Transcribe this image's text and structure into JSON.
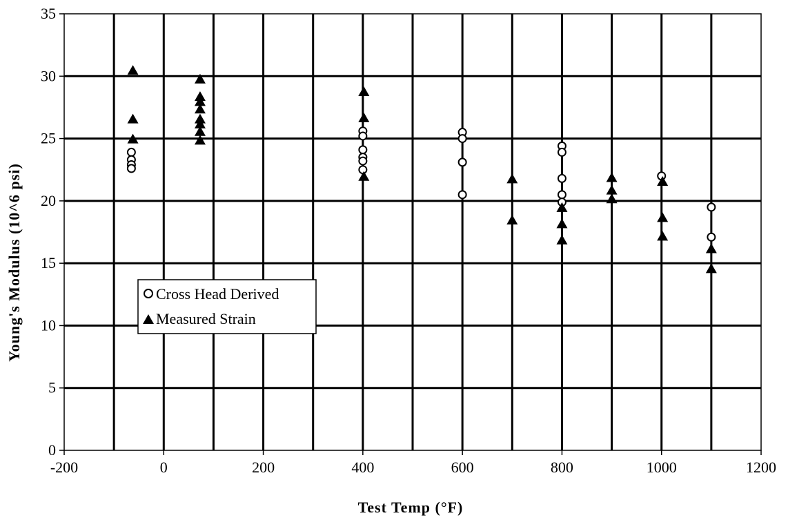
{
  "chart_data": {
    "type": "scatter",
    "xlabel": "Test Temp (°F)",
    "ylabel": "Young's Modulus (10^6 psi)",
    "xlim": [
      -200,
      1200
    ],
    "ylim": [
      0,
      35
    ],
    "x_ticks": [
      -200,
      0,
      200,
      400,
      600,
      800,
      1000,
      1200
    ],
    "y_ticks": [
      0,
      5,
      10,
      15,
      20,
      25,
      30,
      35
    ],
    "x_minor_gridlines": [
      -100,
      100,
      300,
      500,
      700,
      900,
      1100
    ],
    "grid": true,
    "legend_position": "middle-left",
    "series": [
      {
        "name": "Cross Head Derived",
        "marker": "open-circle",
        "color": "#000000",
        "points": [
          [
            -65,
            23.9
          ],
          [
            -65,
            23.3
          ],
          [
            -65,
            22.9
          ],
          [
            -65,
            22.6
          ],
          [
            400,
            25.6
          ],
          [
            400,
            25.2
          ],
          [
            400,
            24.1
          ],
          [
            400,
            23.5
          ],
          [
            400,
            23.2
          ],
          [
            400,
            22.5
          ],
          [
            600,
            25.5
          ],
          [
            600,
            25.0
          ],
          [
            600,
            23.1
          ],
          [
            600,
            20.5
          ],
          [
            800,
            24.4
          ],
          [
            800,
            23.9
          ],
          [
            800,
            21.8
          ],
          [
            800,
            20.5
          ],
          [
            800,
            19.9
          ],
          [
            1000,
            22.0
          ],
          [
            1100,
            19.5
          ],
          [
            1100,
            17.1
          ]
        ]
      },
      {
        "name": "Measured Strain",
        "marker": "filled-triangle",
        "color": "#000000",
        "points": [
          [
            -62,
            30.5
          ],
          [
            -62,
            26.6
          ],
          [
            -62,
            25.0
          ],
          [
            73,
            29.8
          ],
          [
            73,
            28.4
          ],
          [
            73,
            28.0
          ],
          [
            73,
            27.4
          ],
          [
            73,
            26.6
          ],
          [
            73,
            26.2
          ],
          [
            73,
            25.6
          ],
          [
            73,
            24.9
          ],
          [
            402,
            28.8
          ],
          [
            402,
            26.7
          ],
          [
            402,
            22.0
          ],
          [
            700,
            21.8
          ],
          [
            700,
            18.5
          ],
          [
            800,
            19.5
          ],
          [
            800,
            18.2
          ],
          [
            800,
            16.9
          ],
          [
            900,
            21.9
          ],
          [
            900,
            20.9
          ],
          [
            900,
            20.2
          ],
          [
            1002,
            21.6
          ],
          [
            1002,
            18.7
          ],
          [
            1002,
            17.2
          ],
          [
            1100,
            16.2
          ],
          [
            1100,
            14.6
          ]
        ]
      }
    ]
  }
}
